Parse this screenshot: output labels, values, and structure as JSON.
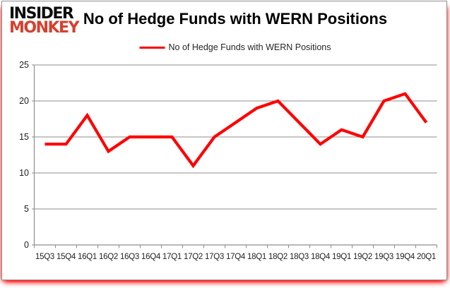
{
  "logo": {
    "line1": "INSIDER",
    "line2": "MONKEY"
  },
  "header": {
    "title": "No of Hedge Funds with WERN Positions"
  },
  "legend": {
    "label": "No of Hedge Funds with WERN Positions"
  },
  "colors": {
    "series_red": "#ff0000",
    "logo_black": "#0d0d0d",
    "logo_red": "#d6402e",
    "grid_gray": "#8e8e8e",
    "axis_text": "#1f1f1f",
    "glow_red": "#ff0000",
    "border_gray": "#8f8f8f",
    "background": "#ffffff"
  },
  "chart_data": {
    "type": "line",
    "title": "No of Hedge Funds with WERN Positions",
    "categories": [
      "15Q3",
      "15Q4",
      "16Q1",
      "16Q2",
      "16Q3",
      "16Q4",
      "17Q1",
      "17Q2",
      "17Q3",
      "17Q4",
      "18Q1",
      "18Q2",
      "18Q3",
      "18Q4",
      "19Q1",
      "19Q2",
      "19Q3",
      "19Q4",
      "20Q1"
    ],
    "series": [
      {
        "name": "No of Hedge Funds with WERN Positions",
        "color": "#ff0000",
        "values": [
          14,
          14,
          18,
          13,
          15,
          15,
          15,
          11,
          15,
          17,
          19,
          20,
          17,
          14,
          16,
          15,
          20,
          21,
          17
        ]
      }
    ],
    "xlabel": "",
    "ylabel": "",
    "ylim": [
      0,
      25
    ],
    "yticks": [
      0,
      5,
      10,
      15,
      20,
      25
    ],
    "grid": "horizontal",
    "legend_position": "top-center"
  }
}
